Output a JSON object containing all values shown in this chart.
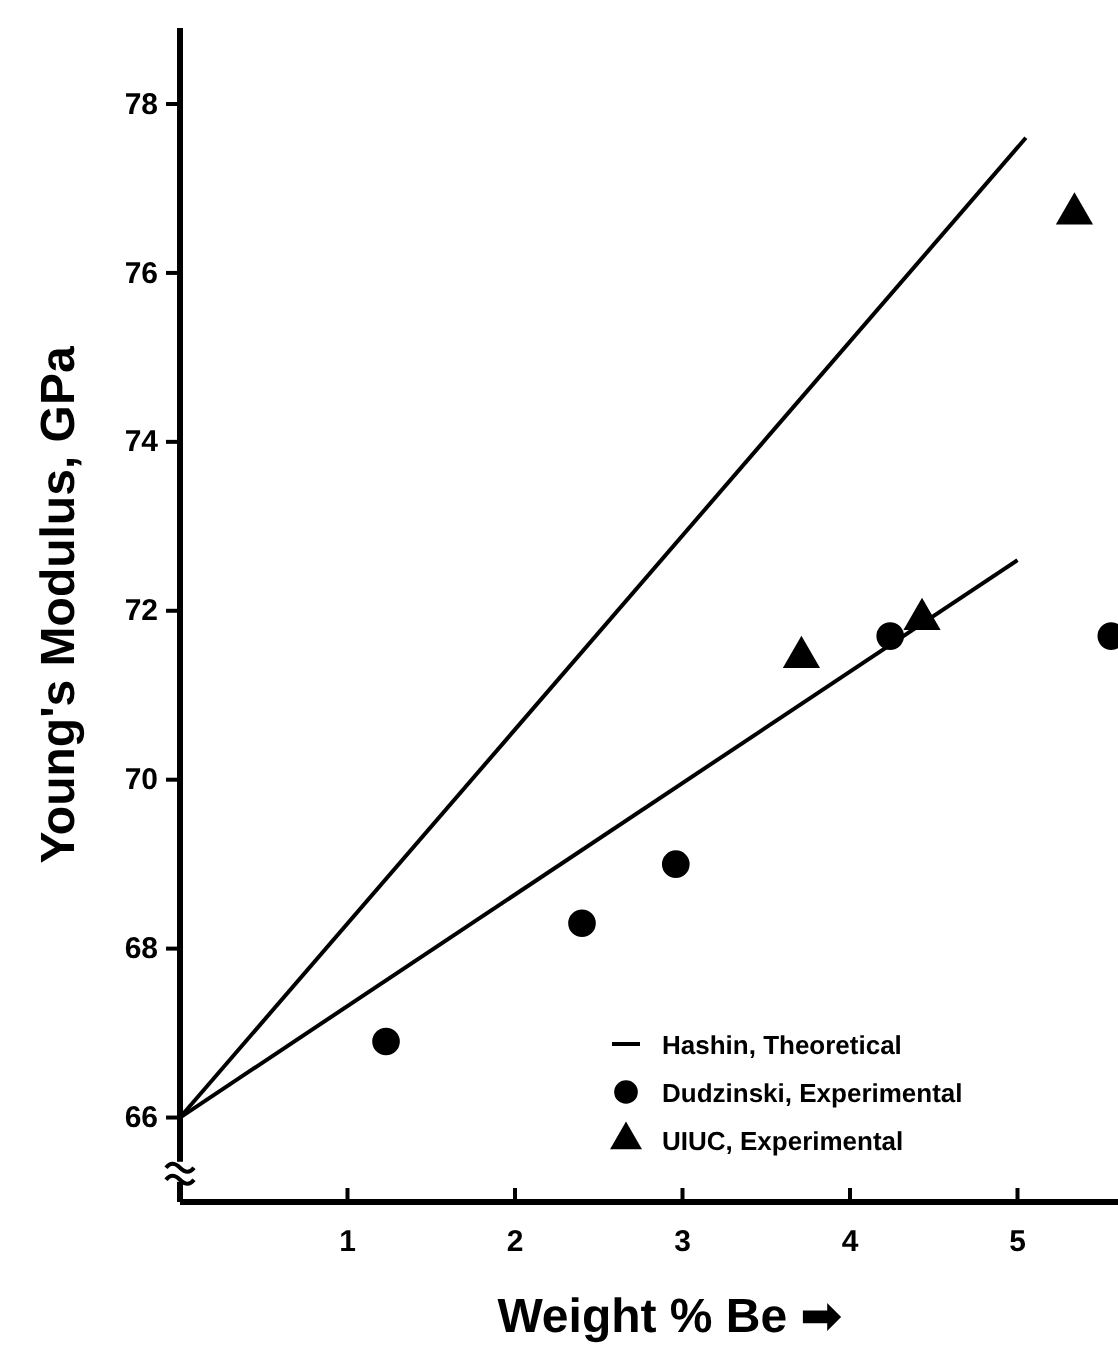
{
  "chart_data": {
    "type": "scatter",
    "xlabel": "Weight % Be ➡",
    "ylabel": "Young's Modulus, GPa",
    "xlim": [
      0,
      5.6
    ],
    "ylim": [
      65,
      78.9
    ],
    "xticks": [
      1,
      2,
      3,
      4,
      5
    ],
    "yticks": [
      66,
      68,
      70,
      72,
      74,
      76,
      78
    ],
    "grid": false,
    "legend": "bottom right",
    "series": [
      {
        "name": "Hashin, Theoretical",
        "type": "line",
        "color": "#000000",
        "x": [
          0,
          5.05
        ],
        "values": [
          66,
          77.6
        ],
        "marker": "none"
      },
      {
        "type": "line",
        "color": "#000000",
        "x": [
          0,
          5.0
        ],
        "values": [
          66,
          72.6
        ],
        "marker": "none"
      },
      {
        "name": "Dudzinski, Experimental",
        "color": "#000000",
        "marker": "circle",
        "x": [
          1.23,
          2.4,
          2.96,
          4.24,
          5.56
        ],
        "values": [
          66.9,
          68.3,
          69.0,
          71.7,
          71.7
        ]
      },
      {
        "name": "UIUC, Experimental",
        "color": "#000000",
        "marker": "triangle",
        "x": [
          3.71,
          4.43,
          5.34
        ],
        "values": [
          71.45,
          71.9,
          76.7
        ]
      }
    ]
  }
}
